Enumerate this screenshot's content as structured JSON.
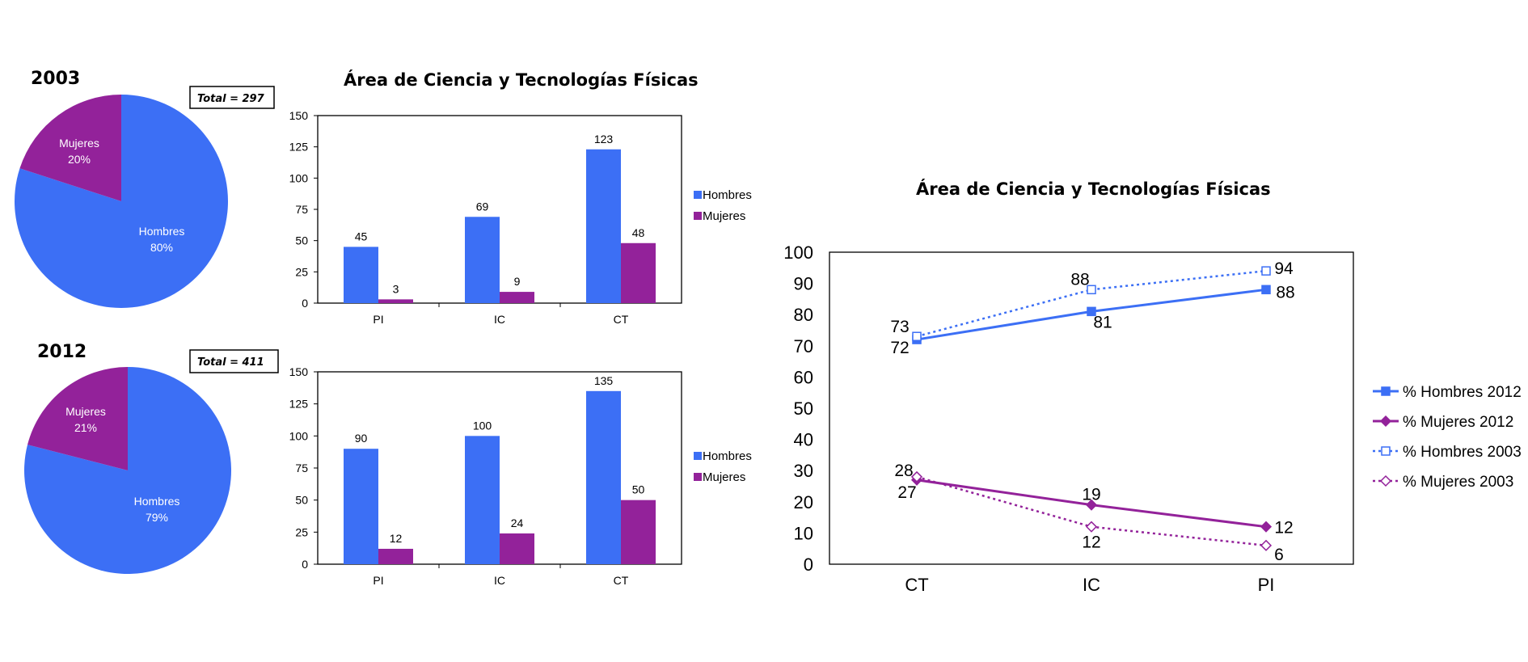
{
  "colors": {
    "hombres": "#3c6ff5",
    "mujeres": "#93229a"
  },
  "chart_data": [
    {
      "type": "pie",
      "title": "2003",
      "total_label": "Total = 297",
      "slices": [
        {
          "label": "Hombres",
          "value": 80,
          "pct_label": "80%"
        },
        {
          "label": "Mujeres",
          "value": 20,
          "pct_label": "20%"
        }
      ]
    },
    {
      "type": "bar",
      "title": "Área de Ciencia y Tecnologías Físicas",
      "categories": [
        "PI",
        "IC",
        "CT"
      ],
      "series": [
        {
          "name": "Hombres",
          "values": [
            45,
            69,
            123
          ]
        },
        {
          "name": "Mujeres",
          "values": [
            3,
            9,
            48
          ]
        }
      ],
      "ylim": [
        0,
        150
      ],
      "yticks": [
        0,
        25,
        50,
        75,
        100,
        125,
        150
      ],
      "legend": "right"
    },
    {
      "type": "pie",
      "title": "2012",
      "total_label": "Total = 411",
      "slices": [
        {
          "label": "Hombres",
          "value": 79,
          "pct_label": "79%"
        },
        {
          "label": "Mujeres",
          "value": 21,
          "pct_label": "21%"
        }
      ]
    },
    {
      "type": "bar",
      "title": "",
      "categories": [
        "PI",
        "IC",
        "CT"
      ],
      "series": [
        {
          "name": "Hombres",
          "values": [
            90,
            100,
            135
          ]
        },
        {
          "name": "Mujeres",
          "values": [
            12,
            24,
            50
          ]
        }
      ],
      "ylim": [
        0,
        150
      ],
      "yticks": [
        0,
        25,
        50,
        75,
        100,
        125,
        150
      ],
      "legend": "right"
    },
    {
      "type": "line",
      "title": "Área de Ciencia y Tecnologías Físicas",
      "categories": [
        "CT",
        "IC",
        "PI"
      ],
      "series": [
        {
          "name": "% Hombres 2012",
          "values": [
            72,
            81,
            88
          ],
          "color": "#3c6ff5",
          "dashed": false,
          "marker": "square-filled"
        },
        {
          "name": "% Mujeres 2012",
          "values": [
            27,
            19,
            12
          ],
          "color": "#93229a",
          "dashed": false,
          "marker": "diamond-filled"
        },
        {
          "name": "% Hombres 2003",
          "values": [
            73,
            88,
            94
          ],
          "color": "#3c6ff5",
          "dashed": true,
          "marker": "square-open"
        },
        {
          "name": "% Mujeres 2003",
          "values": [
            28,
            12,
            6
          ],
          "color": "#93229a",
          "dashed": true,
          "marker": "diamond-open"
        }
      ],
      "ylim": [
        0,
        100
      ],
      "yticks": [
        0,
        10,
        20,
        30,
        40,
        50,
        60,
        70,
        80,
        90,
        100
      ],
      "legend": "right"
    }
  ]
}
